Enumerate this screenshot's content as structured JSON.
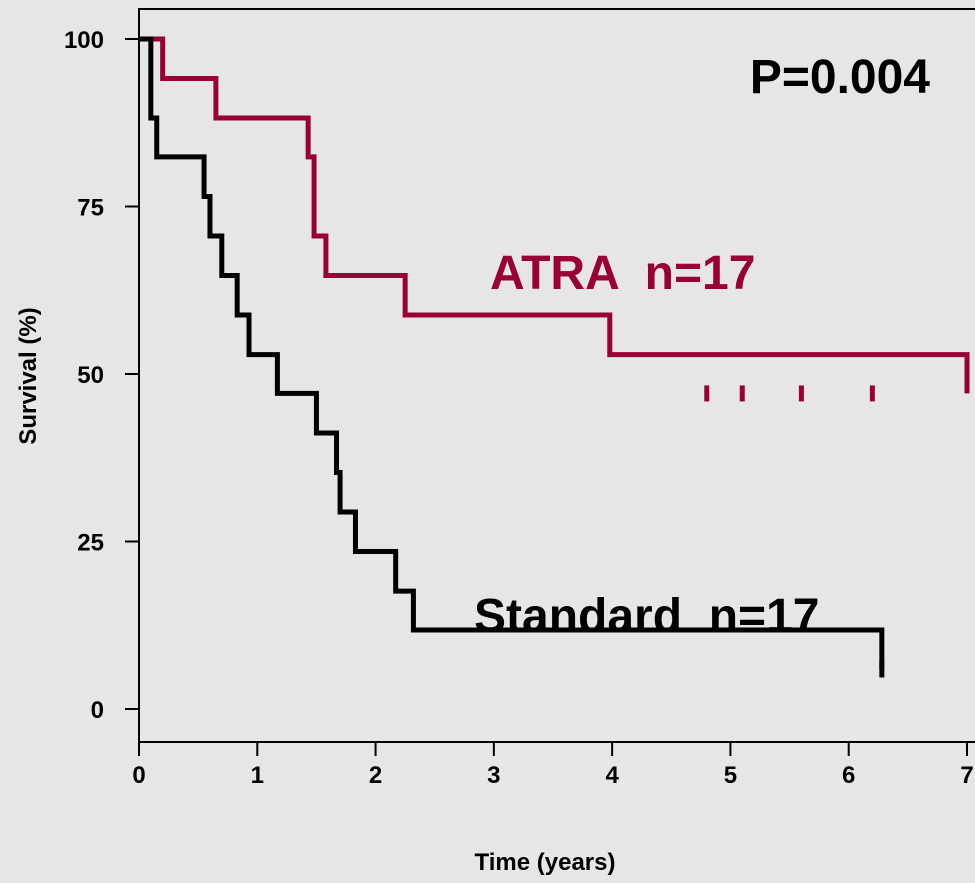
{
  "chart_data": {
    "type": "line",
    "step": true,
    "title": "",
    "xlabel": "Time (years)",
    "ylabel": "Survival (%)",
    "xlim": [
      0,
      7
    ],
    "ylim": [
      0,
      100
    ],
    "x_ticks": [
      "0",
      "1",
      "2",
      "3",
      "4",
      "5",
      "6",
      "7"
    ],
    "y_ticks": [
      "0",
      "25",
      "50",
      "75",
      "100"
    ],
    "grid": false,
    "annotations": {
      "pvalue": "P=0.004",
      "atra_label": "ATRA  n=17",
      "standard_label": "Standard  n=17"
    },
    "series": [
      {
        "name": "ATRA",
        "color": "#990033",
        "x": [
          0,
          0.18,
          0.2,
          0.65,
          1.43,
          1.48,
          1.58,
          2.25,
          3.98,
          7
        ],
        "y": [
          100,
          100,
          94.1,
          88.2,
          82.4,
          70.6,
          64.7,
          58.8,
          52.9,
          47.1
        ],
        "censored_x": [
          4.8,
          5.1,
          5.6,
          6.2
        ]
      },
      {
        "name": "Standard",
        "color": "#000000",
        "x": [
          0,
          0.08,
          0.1,
          0.15,
          0.55,
          0.6,
          0.7,
          0.83,
          0.93,
          1.17,
          1.5,
          1.67,
          1.7,
          1.83,
          2.17,
          2.32,
          6.28
        ],
        "y": [
          100,
          100,
          88.2,
          82.4,
          76.5,
          70.6,
          64.7,
          58.8,
          52.9,
          47.1,
          41.2,
          35.3,
          29.4,
          23.5,
          17.6,
          11.8,
          5.9
        ],
        "censored_x": [
          6.28
        ]
      }
    ]
  }
}
